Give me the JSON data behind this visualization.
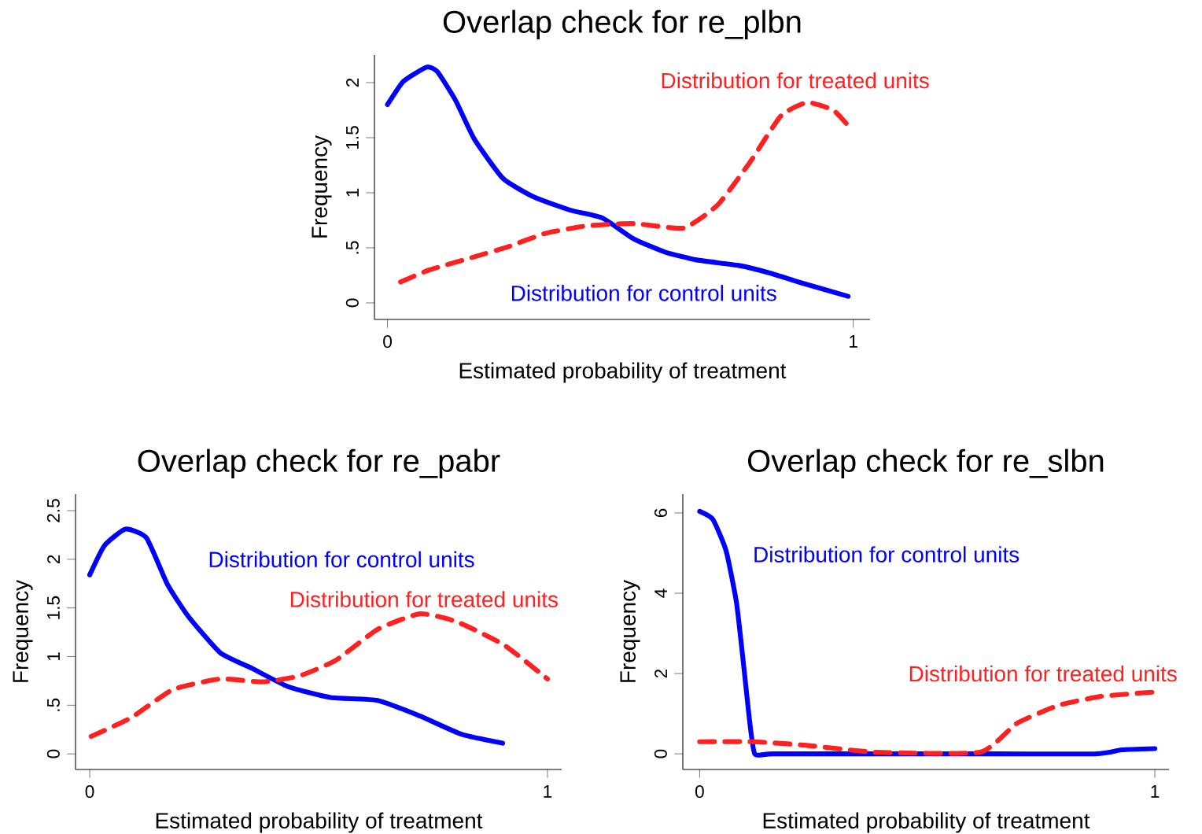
{
  "chart_data": [
    {
      "type": "line",
      "title": "Overlap check for re_plbn",
      "xlabel": "Estimated probability of treatment",
      "ylabel": "Frequency",
      "xlim": [
        -0.028,
        1.036
      ],
      "ylim": [
        -0.15,
        2.25
      ],
      "xticks": [
        0,
        1
      ],
      "yticks": [
        0,
        {
          "value": 0.5,
          "label": ".5"
        },
        1,
        {
          "value": 1.5,
          "label": "1.5"
        },
        2
      ],
      "series": [
        {
          "name": "Distribution for control units",
          "color": "#0000ff",
          "line_style": "solid",
          "x": [
            0,
            0.034,
            0.084,
            0.107,
            0.146,
            0.186,
            0.248,
            0.315,
            0.394,
            0.462,
            0.529,
            0.597,
            0.664,
            0.754,
            0.822,
            0.89,
            0.989
          ],
          "values": [
            1.8,
            2.01,
            2.14,
            2.1,
            1.84,
            1.49,
            1.13,
            0.96,
            0.84,
            0.77,
            0.58,
            0.46,
            0.39,
            0.34,
            0.27,
            0.18,
            0.06
          ]
        },
        {
          "name": "Distribution for treated units",
          "color": "#ff2020",
          "line_style": "dashed",
          "x": [
            0.028,
            0.09,
            0.18,
            0.259,
            0.338,
            0.428,
            0.529,
            0.636,
            0.709,
            0.777,
            0.845,
            0.901,
            0.957,
            0.991
          ],
          "values": [
            0.19,
            0.3,
            0.41,
            0.51,
            0.63,
            0.7,
            0.72,
            0.68,
            0.89,
            1.27,
            1.7,
            1.82,
            1.75,
            1.6
          ]
        }
      ]
    },
    {
      "type": "line",
      "title": "Overlap check for re_pabr",
      "xlabel": "Estimated probability of treatment",
      "ylabel": "Frequency",
      "xlim": [
        -0.031,
        1.031
      ],
      "ylim": [
        -0.16,
        2.67
      ],
      "xticks": [
        0,
        1
      ],
      "yticks": [
        0,
        {
          "value": 0.5,
          "label": ".5"
        },
        1,
        {
          "value": 1.5,
          "label": "1.5"
        },
        2,
        {
          "value": 2.5,
          "label": "2.5"
        }
      ],
      "series": [
        {
          "name": "Distribution for control units",
          "color": "#0000ff",
          "line_style": "solid",
          "x": [
            0,
            0.032,
            0.078,
            0.124,
            0.17,
            0.216,
            0.285,
            0.354,
            0.434,
            0.526,
            0.629,
            0.721,
            0.813,
            0.902
          ],
          "values": [
            1.84,
            2.14,
            2.31,
            2.22,
            1.74,
            1.41,
            1.04,
            0.88,
            0.69,
            0.58,
            0.55,
            0.39,
            0.2,
            0.11
          ]
        },
        {
          "name": "Distribution for treated units",
          "color": "#ff2020",
          "line_style": "dashed",
          "x": [
            0.003,
            0.09,
            0.181,
            0.285,
            0.377,
            0.457,
            0.537,
            0.629,
            0.721,
            0.801,
            0.905,
            1.0
          ],
          "values": [
            0.18,
            0.37,
            0.66,
            0.77,
            0.74,
            0.8,
            0.96,
            1.28,
            1.44,
            1.36,
            1.12,
            0.77
          ]
        }
      ]
    },
    {
      "type": "line",
      "title": "Overlap check for re_slbn",
      "xlabel": "Estimated probability of treatment",
      "ylabel": "Frequency",
      "xlim": [
        -0.037,
        1.031
      ],
      "ylim": [
        -0.39,
        6.47
      ],
      "xticks": [
        0,
        1
      ],
      "yticks": [
        0,
        2,
        4,
        6
      ],
      "series": [
        {
          "name": "Distribution for control units",
          "color": "#0000ff",
          "line_style": "solid",
          "x": [
            0,
            0.029,
            0.058,
            0.081,
            0.098,
            0.109,
            0.121,
            0.16,
            0.351,
            0.582,
            0.87,
            0.927,
            1.0
          ],
          "values": [
            6.04,
            5.84,
            5.06,
            3.76,
            2.06,
            0.89,
            0,
            0,
            0,
            0,
            0,
            0.1,
            0.13
          ]
        },
        {
          "name": "Distribution for treated units",
          "color": "#ff2020",
          "line_style": "dashed",
          "x": [
            0,
            0.121,
            0.236,
            0.386,
            0.616,
            0.697,
            0.789,
            0.881,
            1.0
          ],
          "values": [
            0.3,
            0.3,
            0.21,
            0.04,
            0.04,
            0.76,
            1.21,
            1.43,
            1.54
          ]
        }
      ]
    }
  ]
}
